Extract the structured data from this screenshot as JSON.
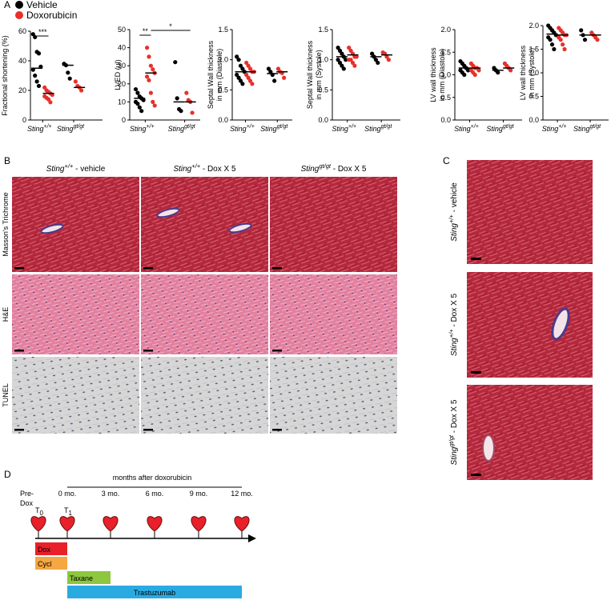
{
  "panel_labels": [
    "A",
    "B",
    "C",
    "D"
  ],
  "legend": [
    {
      "name": "Vehicle",
      "color": "#000000"
    },
    {
      "name": "Doxorubicin",
      "color": "#e8302a"
    }
  ],
  "chart_data": [
    {
      "type": "dotplot",
      "ylabel": [
        "Fractional shortening (%)"
      ],
      "categories": [
        [
          "Sting",
          "+/+"
        ],
        [
          "Sting",
          "gt/gt"
        ]
      ],
      "ylim": [
        0,
        60
      ],
      "yticks": [
        0,
        20,
        40,
        60
      ],
      "series": [
        {
          "color": "#000000",
          "points": [
            [
              58,
              56,
              46,
              45,
              36,
              34,
              30,
              26,
              23
            ],
            [
              38,
              37,
              32,
              28
            ]
          ],
          "means": [
            35,
            37
          ]
        },
        {
          "color": "#e8302a",
          "points": [
            [
              22,
              20,
              19,
              18,
              17,
              16,
              15,
              14,
              12
            ],
            [
              26,
              23,
              22,
              20
            ]
          ],
          "means": [
            18,
            22
          ]
        }
      ],
      "annotations": [
        "***"
      ]
    },
    {
      "type": "dotplot",
      "ylabel": [
        "LVED (ul)"
      ],
      "categories": [
        [
          "Sting",
          "+/+"
        ],
        [
          "Sting",
          "gt/gt"
        ]
      ],
      "ylim": [
        0,
        50
      ],
      "yticks": [
        0,
        10,
        20,
        30,
        40,
        50
      ],
      "series": [
        {
          "color": "#000000",
          "points": [
            [
              17,
              15,
              13,
              12,
              11,
              10,
              9,
              7,
              5
            ],
            [
              32,
              12,
              6,
              5
            ]
          ],
          "means": [
            12,
            10
          ]
        },
        {
          "color": "#e8302a",
          "points": [
            [
              40,
              35,
              30,
              28,
              26,
              24,
              22,
              15,
              10,
              8
            ],
            [
              15,
              11,
              10,
              4
            ]
          ],
          "means": [
            26,
            10
          ]
        }
      ],
      "annotations": [
        "**",
        "*"
      ]
    },
    {
      "type": "dotplot",
      "ylabel": [
        "Septal Wall thickness",
        "in mm (Diastole)"
      ],
      "categories": [
        [
          "Sting",
          "+/+"
        ],
        [
          "Sting",
          "gt/gt"
        ]
      ],
      "ylim": [
        0,
        1.5
      ],
      "yticks": [
        {
          "value": 0,
          "label": "0.0"
        },
        {
          "value": 0.5,
          "label": "0.5"
        },
        {
          "value": 1,
          "label": "1.0"
        },
        {
          "value": 1.5,
          "label": "1.5"
        }
      ],
      "series": [
        {
          "color": "#000000",
          "points": [
            [
              1.05,
              1.0,
              0.9,
              0.85,
              0.8,
              0.75,
              0.7,
              0.65,
              0.6
            ],
            [
              0.85,
              0.8,
              0.75,
              0.65
            ]
          ],
          "means": [
            0.8,
            0.77
          ]
        },
        {
          "color": "#e8302a",
          "points": [
            [
              0.95,
              0.9,
              0.85,
              0.8,
              0.8,
              0.75,
              0.7,
              0.65,
              0.6
            ],
            [
              0.85,
              0.8,
              0.78,
              0.7
            ]
          ],
          "means": [
            0.8,
            0.8
          ]
        }
      ],
      "annotations": []
    },
    {
      "type": "dotplot",
      "ylabel": [
        "Septal Wall thickness",
        "in mm (Systole)"
      ],
      "categories": [
        [
          "Sting",
          "+/+"
        ],
        [
          "Sting",
          "gt/gt"
        ]
      ],
      "ylim": [
        0,
        1.5
      ],
      "yticks": [
        {
          "value": 0,
          "label": "0.0"
        },
        {
          "value": 0.5,
          "label": "0.5"
        },
        {
          "value": 1,
          "label": "1.0"
        },
        {
          "value": 1.5,
          "label": "1.5"
        }
      ],
      "series": [
        {
          "color": "#000000",
          "points": [
            [
              1.2,
              1.15,
              1.1,
              1.05,
              1.0,
              1.0,
              0.95,
              0.9,
              0.85
            ],
            [
              1.1,
              1.05,
              1.0,
              0.95
            ]
          ],
          "means": [
            1.05,
            1.05
          ]
        },
        {
          "color": "#e8302a",
          "points": [
            [
              1.2,
              1.15,
              1.1,
              1.05,
              1.05,
              1.0,
              1.0,
              0.95,
              0.9
            ],
            [
              1.12,
              1.1,
              1.05,
              1.0
            ]
          ],
          "means": [
            1.08,
            1.08
          ]
        }
      ],
      "annotations": []
    },
    {
      "type": "dotplot",
      "ylabel": [
        "LV wall thickness",
        "in mm (Diastole)"
      ],
      "categories": [
        [
          "Sting",
          "+/+"
        ],
        [
          "Sting",
          "gt/gt"
        ]
      ],
      "ylim": [
        0,
        2
      ],
      "yticks": [
        {
          "value": 0,
          "label": "0.0"
        },
        {
          "value": 0.5,
          "label": "0.5"
        },
        {
          "value": 1,
          "label": "1.0"
        },
        {
          "value": 1.5,
          "label": "1.5"
        },
        {
          "value": 2,
          "label": "2.0"
        }
      ],
      "series": [
        {
          "color": "#000000",
          "points": [
            [
              1.3,
              1.25,
              1.2,
              1.15,
              1.1,
              1.1,
              1.05,
              1.0
            ],
            [
              1.15,
              1.1,
              1.05
            ]
          ],
          "means": [
            1.15,
            1.1
          ]
        },
        {
          "color": "#e8302a",
          "points": [
            [
              1.25,
              1.2,
              1.15,
              1.15,
              1.1,
              1.1,
              1.05,
              1.0
            ],
            [
              1.25,
              1.2,
              1.15,
              1.1
            ]
          ],
          "means": [
            1.15,
            1.15
          ]
        }
      ],
      "annotations": []
    },
    {
      "type": "dotplot",
      "ylabel": [
        "LV wall thickness",
        "in mm (Systole)"
      ],
      "categories": [
        [
          "Sting",
          "+/+"
        ],
        [
          "Sting",
          "gt/gt"
        ]
      ],
      "ylim": [
        0,
        2
      ],
      "yticks": [
        {
          "value": 0,
          "label": "0.0"
        },
        {
          "value": 0.5,
          "label": "0.5"
        },
        {
          "value": 1,
          "label": "1.0"
        },
        {
          "value": 1.5,
          "label": "1.5"
        },
        {
          "value": 2,
          "label": "2.0"
        }
      ],
      "series": [
        {
          "color": "#000000",
          "points": [
            [
              2.0,
              1.95,
              1.9,
              1.85,
              1.8,
              1.75,
              1.7,
              1.6,
              1.5
            ],
            [
              1.9,
              1.8,
              1.7
            ]
          ],
          "means": [
            1.82,
            1.8
          ]
        },
        {
          "color": "#e8302a",
          "points": [
            [
              1.95,
              1.9,
              1.85,
              1.8,
              1.8,
              1.75,
              1.7,
              1.6,
              1.5
            ],
            [
              1.85,
              1.8,
              1.75,
              1.7
            ]
          ],
          "means": [
            1.8,
            1.8
          ]
        }
      ],
      "annotations": []
    }
  ],
  "histology": {
    "columns": [
      {
        "gene": "Sting",
        "genotype": "+/+",
        "condition": " - vehicle"
      },
      {
        "gene": "Sting",
        "genotype": "+/+",
        "condition": " - Dox X 5"
      },
      {
        "gene": "Sting",
        "genotype": "gt/gt",
        "condition": " - Dox X 5"
      }
    ],
    "rows": [
      "Masson's Trichrome",
      "H&E",
      "TUNEL"
    ]
  },
  "panel_c": {
    "rows": [
      {
        "gene": "Sting",
        "genotype": "+/+",
        "condition": " - vehicle"
      },
      {
        "gene": "Sting",
        "genotype": "+/+",
        "condition": " - Dox X 5"
      },
      {
        "gene": "Sting",
        "genotype": "gt/gt",
        "condition": " - Dox X 5"
      }
    ]
  },
  "timeline": {
    "title": "months after doxorubicin",
    "pre": [
      "Pre-",
      "Dox"
    ],
    "ticks": [
      "0 mo.",
      "3 mo.",
      "6 mo.",
      "9 mo.",
      "12 mo."
    ],
    "timepoints": [
      [
        "T",
        "0"
      ],
      [
        "T",
        "1"
      ]
    ],
    "treatments": [
      {
        "name": "Dox",
        "color": "#e8202a"
      },
      {
        "name": "Cycl",
        "color": "#f5a742"
      },
      {
        "name": "Taxane",
        "color": "#8dc63f"
      },
      {
        "name": "Trastuzumab",
        "color": "#29abe2"
      }
    ]
  }
}
